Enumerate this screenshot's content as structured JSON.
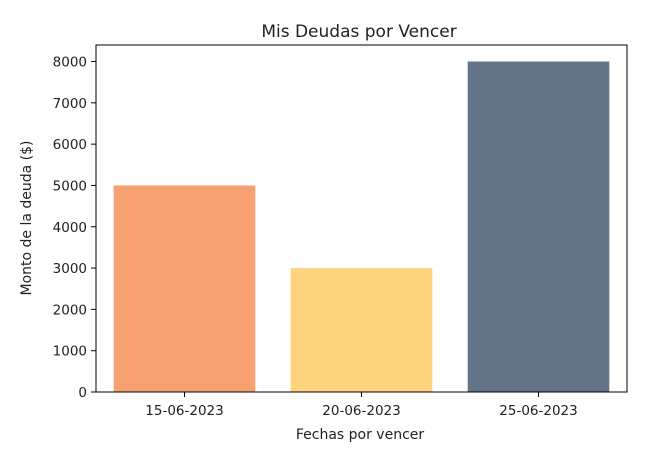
{
  "chart_data": {
    "type": "bar",
    "title": "Mis Deudas por Vencer",
    "xlabel": "Fechas por vencer",
    "ylabel": "Monto de la deuda ($)",
    "categories": [
      "15-06-2023",
      "20-06-2023",
      "25-06-2023"
    ],
    "values": [
      5000,
      3000,
      8000
    ],
    "colors": [
      "#f7a072",
      "#fed37e",
      "#627486"
    ],
    "ylim": [
      0,
      8400
    ],
    "yticks": [
      0,
      1000,
      2000,
      3000,
      4000,
      5000,
      6000,
      7000,
      8000
    ],
    "grid": false,
    "legend": "none"
  }
}
